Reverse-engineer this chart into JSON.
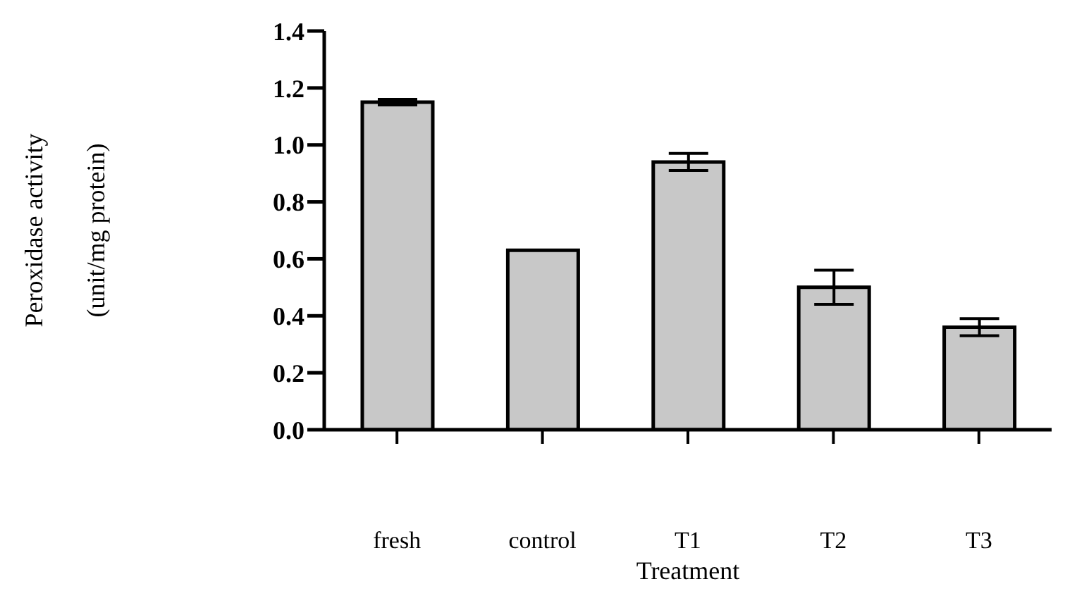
{
  "chart_data": {
    "type": "bar",
    "xlabel": "Treatment",
    "ylabel": "Peroxidase activity\n(unit/mg protein)",
    "categories": [
      "fresh",
      "control",
      "T1",
      "T2",
      "T3"
    ],
    "values": [
      1.15,
      0.63,
      0.94,
      0.5,
      0.36
    ],
    "errors": [
      0.01,
      null,
      0.03,
      0.06,
      0.03
    ],
    "color": "#c8c8c8",
    "ylim": [
      0,
      1.4
    ],
    "yticks": [
      {
        "value": 0,
        "label": "0.0"
      },
      0.2,
      0.4,
      0.6,
      0.8,
      {
        "value": 1,
        "label": "1.0"
      },
      1.2,
      1.4
    ],
    "grid": false,
    "legend": false
  }
}
